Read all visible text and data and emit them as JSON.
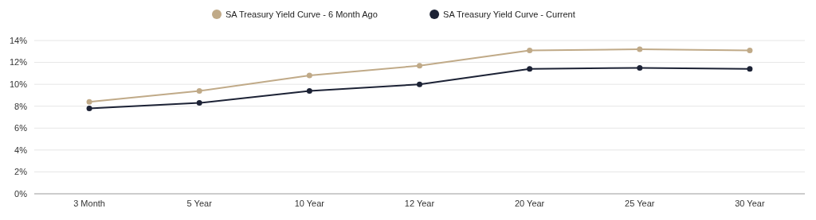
{
  "chart_data": {
    "type": "line",
    "categories": [
      "3 Month",
      "5 Year",
      "10 Year",
      "12 Year",
      "20 Year",
      "25 Year",
      "30 Year"
    ],
    "series": [
      {
        "name": "SA Treasury Yield Curve - 6 Month Ago",
        "color": "#c0aa88",
        "values": [
          8.4,
          9.4,
          10.8,
          11.7,
          13.1,
          13.2,
          13.1
        ]
      },
      {
        "name": "SA Treasury Yield Curve - Current",
        "color": "#1c2235",
        "values": [
          7.8,
          8.3,
          9.4,
          10.0,
          11.4,
          11.5,
          11.4
        ]
      }
    ],
    "ylim": [
      0,
      14
    ],
    "yticks": [
      {
        "value": 0,
        "label": "0%"
      },
      {
        "value": 2,
        "label": "2%"
      },
      {
        "value": 4,
        "label": "4%"
      },
      {
        "value": 6,
        "label": "6%"
      },
      {
        "value": 8,
        "label": "8%"
      },
      {
        "value": 10,
        "label": "10%"
      },
      {
        "value": 12,
        "label": "12%"
      },
      {
        "value": 14,
        "label": "14%"
      }
    ],
    "grid": "y",
    "legend": "top",
    "marker": "circle",
    "line_style": "solid"
  }
}
